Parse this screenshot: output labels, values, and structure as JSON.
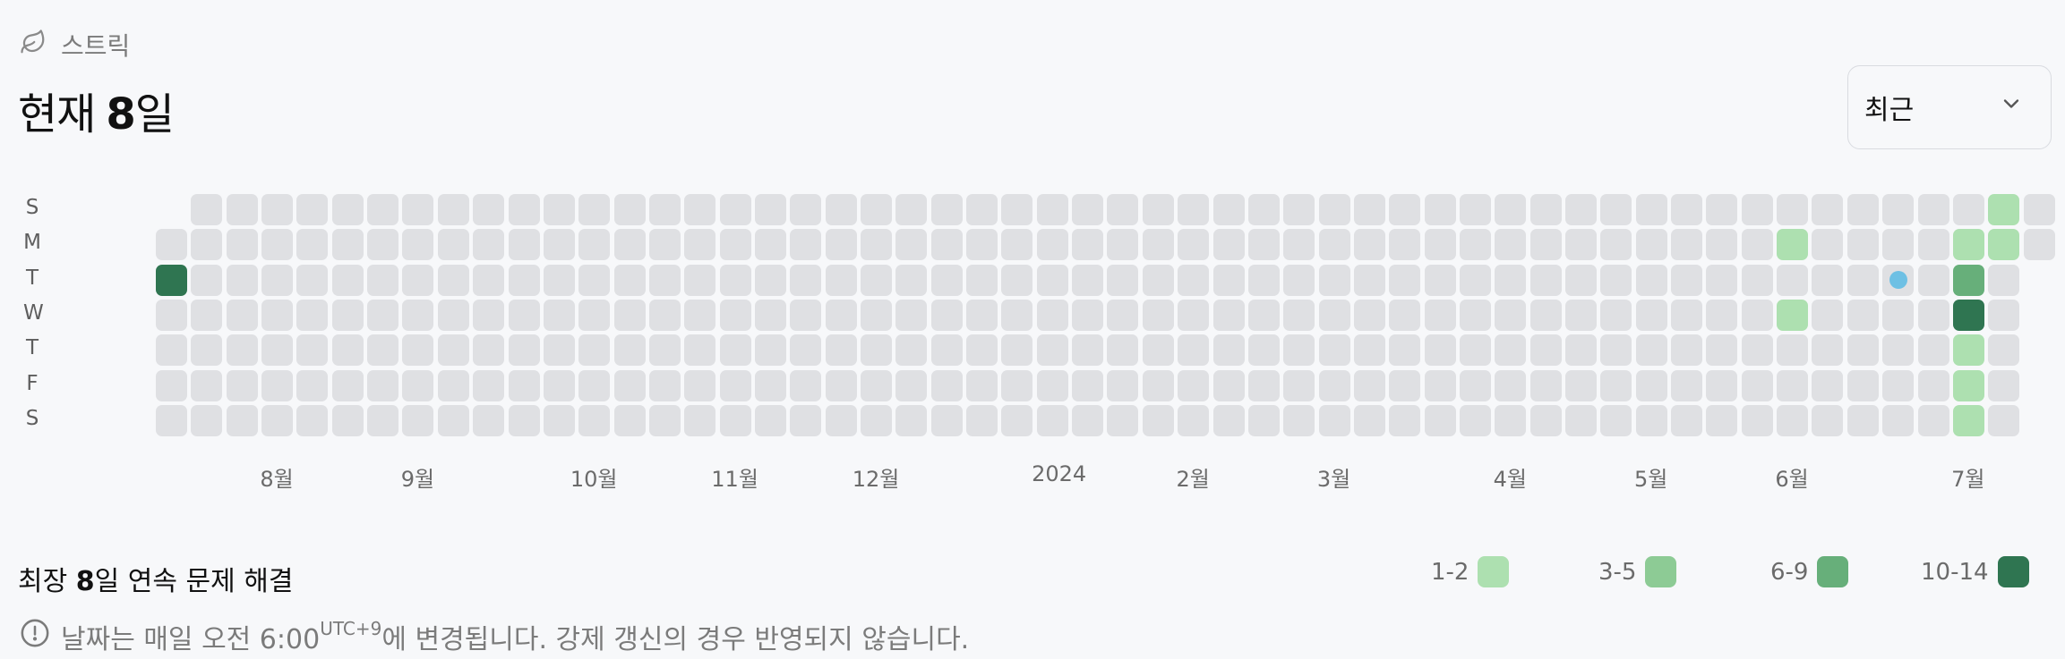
{
  "header": {
    "label": "스트릭",
    "icon": "leaf-icon"
  },
  "title": {
    "prefix": "현재",
    "number": "8",
    "suffix": "일"
  },
  "dropdown": {
    "selected": "최근",
    "icon": "chevron-down-icon"
  },
  "days": [
    "S",
    "M",
    "T",
    "W",
    "T",
    "F",
    "S"
  ],
  "months": [
    {
      "label": "8월",
      "week": 3.0
    },
    {
      "label": "9월",
      "week": 7.0
    },
    {
      "label": "10월",
      "week": 12.0
    },
    {
      "label": "11월",
      "week": 16.0
    },
    {
      "label": "12월",
      "week": 20.0
    },
    {
      "label": "2024",
      "week": 25.2
    },
    {
      "label": "2월",
      "week": 29.0
    },
    {
      "label": "3월",
      "week": 33.0
    },
    {
      "label": "4월",
      "week": 38.0
    },
    {
      "label": "5월",
      "week": 42.0
    },
    {
      "label": "6월",
      "week": 46.0
    },
    {
      "label": "7월",
      "week": 51.0
    }
  ],
  "grid": {
    "weeks": 54,
    "first_week_start_day": 1,
    "last_week_end_day": 1,
    "active": [
      {
        "week": 0,
        "day": 2,
        "level": 4
      },
      {
        "week": 46,
        "day": 1,
        "level": 1
      },
      {
        "week": 46,
        "day": 3,
        "level": 1
      },
      {
        "week": 51,
        "day": 1,
        "level": 1
      },
      {
        "week": 51,
        "day": 2,
        "level": 3
      },
      {
        "week": 51,
        "day": 3,
        "level": 4
      },
      {
        "week": 51,
        "day": 4,
        "level": 1
      },
      {
        "week": 51,
        "day": 5,
        "level": 1
      },
      {
        "week": 51,
        "day": 6,
        "level": 1
      },
      {
        "week": 52,
        "day": 0,
        "level": 1
      },
      {
        "week": 52,
        "day": 1,
        "level": 1
      }
    ],
    "today_marker": {
      "week": 49,
      "day": 2
    }
  },
  "longest": {
    "prefix": "최장",
    "number": "8",
    "suffix": "일 연속 문제 해결"
  },
  "legend": [
    {
      "label": "1-2",
      "color": "#ade0b0"
    },
    {
      "label": "3-5",
      "color": "#8dcb95"
    },
    {
      "label": "6-9",
      "color": "#67af7a"
    },
    {
      "label": "10-14",
      "color": "#2f7551"
    }
  ],
  "colors": {
    "empty": "#dfe0e3",
    "today_dot": "#6ec0e4"
  },
  "notice": {
    "text_before": "날짜는 매일 오전 6:00",
    "sup": "UTC+9",
    "text_after": "에 변경됩니다. 강제 갱신의 경우 반영되지 않습니다.",
    "icon": "info-circle-icon"
  }
}
